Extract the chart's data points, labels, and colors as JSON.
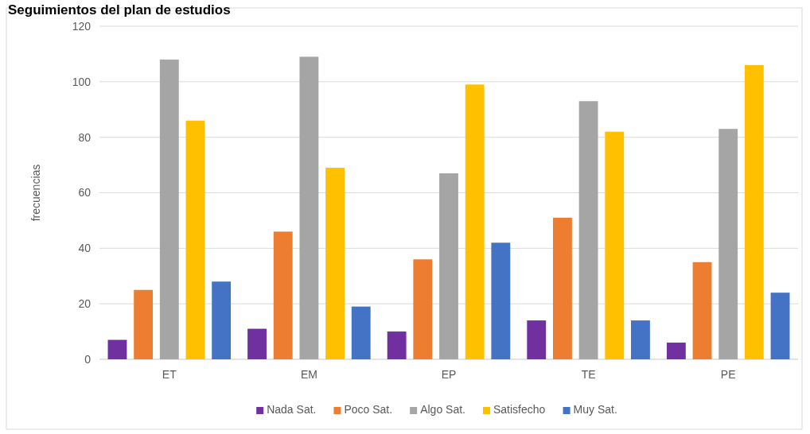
{
  "chart_data": {
    "type": "bar",
    "title": "Seguimientos del plan de estudios",
    "ylabel": "frecuencias",
    "categories": [
      "ET",
      "EM",
      "EP",
      "TE",
      "PE"
    ],
    "series": [
      {
        "name": "Nada Sat.",
        "color": "#7030a0",
        "values": [
          7,
          11,
          10,
          14,
          6
        ]
      },
      {
        "name": "Poco Sat.",
        "color": "#ed7d31",
        "values": [
          25,
          46,
          36,
          51,
          35
        ]
      },
      {
        "name": "Algo Sat.",
        "color": "#a5a5a5",
        "values": [
          108,
          109,
          67,
          93,
          83
        ]
      },
      {
        "name": "Satisfecho",
        "color": "#ffc000",
        "values": [
          86,
          69,
          99,
          82,
          106
        ]
      },
      {
        "name": "Muy Sat.",
        "color": "#4472c4",
        "values": [
          28,
          19,
          42,
          14,
          24
        ]
      }
    ],
    "ylim": [
      0,
      120
    ],
    "yticks": [
      0,
      20,
      40,
      60,
      80,
      100,
      120
    ],
    "grid": "y",
    "legend": "bottom"
  }
}
